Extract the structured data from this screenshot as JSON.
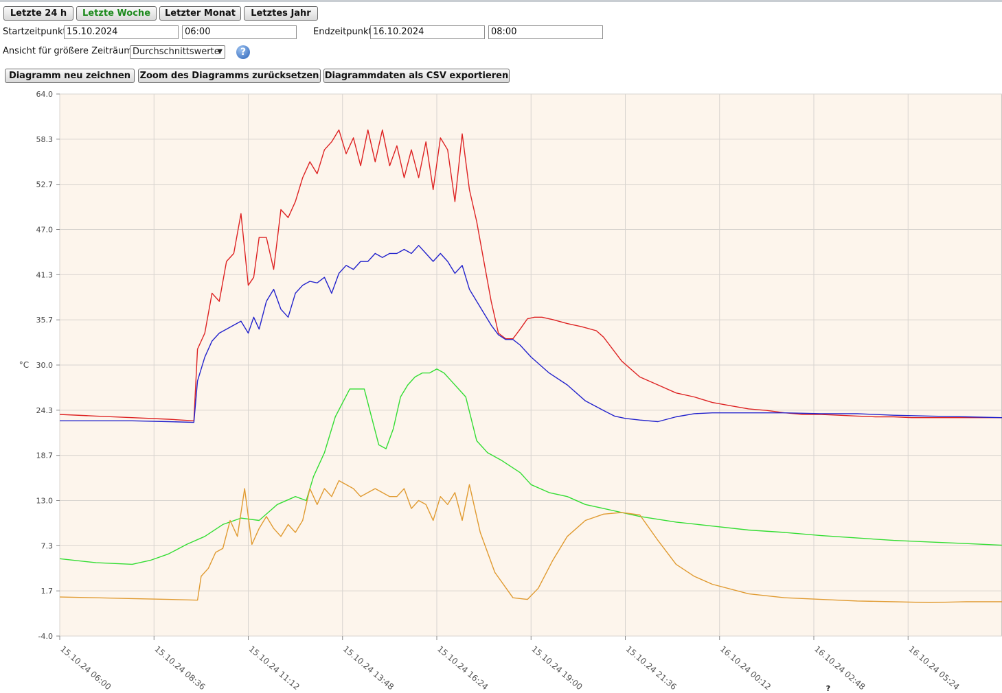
{
  "toolbar": {
    "range_buttons": [
      {
        "label": "Letzte 24 h",
        "active": false
      },
      {
        "label": "Letzte Woche",
        "active": true
      },
      {
        "label": "Letzter Monat",
        "active": false
      },
      {
        "label": "Letztes Jahr",
        "active": false
      }
    ],
    "active_color": "#1d8a1d"
  },
  "range": {
    "start_label": "Startzeitpunkt",
    "start_date": "15.10.2024",
    "start_time": "06:00",
    "end_label": "Endzeitpunkt",
    "end_date": "16.10.2024",
    "end_time": "08:00"
  },
  "view": {
    "label": "Ansicht für größere Zeiträume",
    "selected": "Durchschnittswerte",
    "help_icon": "help-icon"
  },
  "actions": {
    "redraw": "Diagramm neu zeichnen",
    "reset_zoom": "Zoom des Diagramms zurücksetzen",
    "export_csv": "Diagrammdaten als CSV exportieren"
  },
  "chart_data": {
    "type": "line",
    "ylabel": "°C",
    "ylim": [
      -4.0,
      64.0
    ],
    "yticks": [
      "64.0",
      "58.3",
      "52.7",
      "47.0",
      "41.3",
      "35.7",
      "30.0",
      "24.3",
      "18.7",
      "13.0",
      "7.3",
      "1.7",
      "-4.0"
    ],
    "xlim_hours": [
      0,
      26
    ],
    "xticks": [
      "15.10.24 06:00",
      "15.10.24 08:36",
      "15.10.24 11:12",
      "15.10.24 13:48",
      "15.10.24 16:24",
      "15.10.24 19:00",
      "15.10.24 21:36",
      "16.10.24 00:12",
      "16.10.24 02:48",
      "16.10.24 05:24"
    ],
    "grid": true,
    "background": "#fdf5ec",
    "bottom_marker": "?",
    "series": [
      {
        "color": "#dd2222",
        "x": [
          0,
          1,
          2,
          3,
          3.7,
          3.8,
          4.0,
          4.2,
          4.4,
          4.6,
          4.8,
          5.0,
          5.2,
          5.35,
          5.5,
          5.7,
          5.9,
          6.1,
          6.3,
          6.5,
          6.7,
          6.9,
          7.1,
          7.3,
          7.5,
          7.7,
          7.9,
          8.1,
          8.3,
          8.5,
          8.7,
          8.9,
          9.1,
          9.3,
          9.5,
          9.7,
          9.9,
          10.1,
          10.3,
          10.5,
          10.7,
          10.9,
          11.1,
          11.3,
          11.5,
          11.7,
          11.9,
          12.1,
          12.3,
          12.5,
          12.7,
          12.9,
          13.1,
          13.3,
          13.6,
          14.0,
          14.4,
          14.8,
          15.0,
          15.5,
          16.0,
          16.5,
          17.0,
          17.5,
          18.0,
          18.5,
          19.0,
          19.5,
          20.0,
          20.5,
          21.0,
          21.5,
          22.0,
          22.5,
          23.0,
          23.5,
          24.0,
          24.5,
          25.0,
          26.0
        ],
        "y": [
          23.8,
          23.6,
          23.4,
          23.2,
          23.0,
          32.0,
          34.0,
          39.0,
          38.0,
          43.0,
          44.0,
          49.0,
          40.0,
          41.0,
          46.0,
          46.0,
          42.0,
          49.5,
          48.5,
          50.5,
          53.5,
          55.5,
          54.0,
          57.0,
          58.0,
          59.5,
          56.5,
          58.5,
          55.0,
          59.5,
          55.5,
          59.5,
          55.0,
          57.5,
          53.5,
          57.0,
          53.5,
          58.0,
          52.0,
          58.5,
          57.0,
          50.5,
          59.0,
          52.0,
          48.0,
          43.0,
          38.0,
          34.0,
          33.3,
          33.3,
          34.5,
          35.8,
          36.0,
          36.0,
          35.7,
          35.2,
          34.8,
          34.3,
          33.5,
          30.5,
          28.5,
          27.5,
          26.5,
          26.0,
          25.3,
          24.9,
          24.5,
          24.3,
          24.0,
          23.8,
          23.8,
          23.7,
          23.6,
          23.5,
          23.5,
          23.4,
          23.4,
          23.4,
          23.4,
          23.4
        ]
      },
      {
        "color": "#2222cc",
        "x": [
          0,
          1,
          2,
          3,
          3.7,
          3.8,
          4.0,
          4.2,
          4.4,
          4.6,
          4.8,
          5.0,
          5.2,
          5.35,
          5.5,
          5.7,
          5.9,
          6.1,
          6.3,
          6.5,
          6.7,
          6.9,
          7.1,
          7.3,
          7.5,
          7.7,
          7.9,
          8.1,
          8.3,
          8.5,
          8.7,
          8.9,
          9.1,
          9.3,
          9.5,
          9.7,
          9.9,
          10.1,
          10.3,
          10.5,
          10.7,
          10.9,
          11.1,
          11.3,
          11.5,
          11.7,
          11.9,
          12.1,
          12.3,
          12.5,
          12.7,
          13.0,
          13.5,
          14.0,
          14.5,
          15.0,
          15.3,
          15.6,
          16.0,
          16.5,
          17.0,
          17.5,
          18.0,
          19.0,
          20.0,
          21.0,
          22.0,
          23.0,
          24.0,
          25.0,
          26.0
        ],
        "y": [
          23.0,
          23.0,
          23.0,
          22.9,
          22.8,
          28.0,
          31.0,
          33.0,
          34.0,
          34.5,
          35.0,
          35.5,
          34.0,
          36.0,
          34.5,
          38.0,
          39.5,
          37.0,
          36.0,
          39.0,
          40.0,
          40.5,
          40.3,
          41.0,
          39.0,
          41.5,
          42.5,
          42.0,
          43.0,
          43.0,
          44.0,
          43.5,
          44.0,
          44.0,
          44.5,
          44.0,
          45.0,
          44.0,
          43.0,
          44.0,
          43.0,
          41.5,
          42.5,
          39.5,
          38.0,
          36.5,
          35.0,
          33.8,
          33.2,
          33.2,
          32.5,
          31.0,
          29.0,
          27.5,
          25.5,
          24.3,
          23.6,
          23.3,
          23.1,
          22.9,
          23.5,
          23.9,
          24.0,
          24.0,
          24.0,
          23.9,
          23.9,
          23.7,
          23.6,
          23.5,
          23.4
        ]
      },
      {
        "color": "#33dd33",
        "x": [
          0,
          1,
          2,
          2.5,
          3,
          3.5,
          4.0,
          4.5,
          5.0,
          5.5,
          6.0,
          6.5,
          6.8,
          7.0,
          7.3,
          7.6,
          8.0,
          8.4,
          8.8,
          9.0,
          9.2,
          9.4,
          9.6,
          9.8,
          10.0,
          10.2,
          10.4,
          10.6,
          10.8,
          11.0,
          11.2,
          11.5,
          11.8,
          12.2,
          12.7,
          13.0,
          13.5,
          14.0,
          14.5,
          15.0,
          15.5,
          16.0,
          17.0,
          18.0,
          19.0,
          20.0,
          21.0,
          22.0,
          23.0,
          24.0,
          25.0,
          26.0
        ],
        "y": [
          5.7,
          5.2,
          5.0,
          5.5,
          6.3,
          7.5,
          8.5,
          10.0,
          10.8,
          10.5,
          12.5,
          13.5,
          13.0,
          16.0,
          19.0,
          23.5,
          27.0,
          27.0,
          20.0,
          19.5,
          22.0,
          26.0,
          27.5,
          28.5,
          29.0,
          29.0,
          29.5,
          29.0,
          28.0,
          27.0,
          26.0,
          20.5,
          19.0,
          18.0,
          16.5,
          15.0,
          14.0,
          13.5,
          12.5,
          12.0,
          11.5,
          11.0,
          10.3,
          9.8,
          9.3,
          9.0,
          8.6,
          8.3,
          8.0,
          7.8,
          7.6,
          7.4
        ]
      },
      {
        "color": "#e09a30",
        "x": [
          0,
          1,
          2,
          3,
          3.8,
          3.9,
          4.1,
          4.3,
          4.5,
          4.7,
          4.9,
          5.1,
          5.3,
          5.5,
          5.7,
          5.9,
          6.1,
          6.3,
          6.5,
          6.7,
          6.9,
          7.1,
          7.3,
          7.5,
          7.7,
          7.9,
          8.1,
          8.3,
          8.5,
          8.7,
          8.9,
          9.1,
          9.3,
          9.5,
          9.7,
          9.9,
          10.1,
          10.3,
          10.5,
          10.7,
          10.9,
          11.1,
          11.3,
          11.6,
          12.0,
          12.5,
          12.9,
          13.2,
          13.6,
          14.0,
          14.5,
          15.0,
          15.5,
          16.0,
          16.5,
          17.0,
          17.5,
          18.0,
          19.0,
          20.0,
          21.0,
          22.0,
          23.0,
          24.0,
          25.0,
          26.0
        ],
        "y": [
          0.9,
          0.8,
          0.7,
          0.6,
          0.5,
          3.5,
          4.5,
          6.5,
          7.0,
          10.5,
          8.5,
          14.5,
          7.5,
          9.5,
          11.0,
          9.5,
          8.5,
          10.0,
          9.0,
          10.5,
          14.5,
          12.5,
          14.5,
          13.5,
          15.5,
          15.0,
          14.5,
          13.5,
          14.0,
          14.5,
          14.0,
          13.5,
          13.5,
          14.5,
          12.0,
          13.0,
          12.5,
          10.5,
          13.5,
          12.5,
          14.0,
          10.5,
          15.0,
          9.0,
          4.0,
          0.8,
          0.6,
          2.0,
          5.5,
          8.5,
          10.5,
          11.3,
          11.5,
          11.2,
          8.0,
          5.0,
          3.5,
          2.5,
          1.3,
          0.8,
          0.6,
          0.4,
          0.3,
          0.2,
          0.3,
          0.3
        ]
      }
    ]
  }
}
